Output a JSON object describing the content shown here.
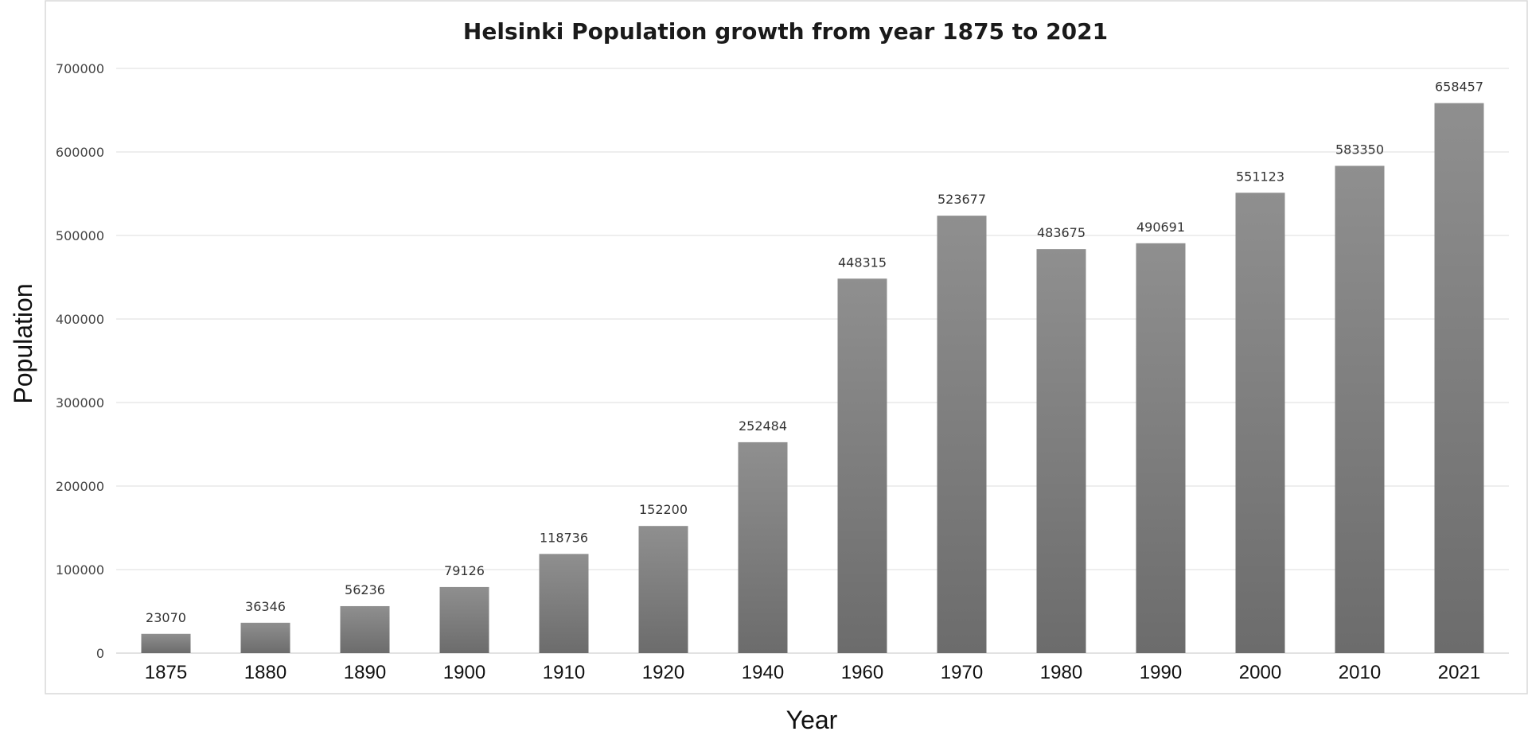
{
  "chart_data": {
    "type": "bar",
    "title": "Helsinki Population growth from year 1875 to 2021",
    "xlabel": "Year",
    "ylabel": "Population",
    "categories": [
      "1875",
      "1880",
      "1890",
      "1900",
      "1910",
      "1920",
      "1940",
      "1960",
      "1970",
      "1980",
      "1990",
      "2000",
      "2010",
      "2021"
    ],
    "values": [
      23070,
      36346,
      56236,
      79126,
      118736,
      152200,
      252484,
      448315,
      523677,
      483675,
      490691,
      551123,
      583350,
      658457
    ],
    "ylim": [
      0,
      700000
    ],
    "yticks": [
      "0",
      "100000",
      "200000",
      "300000",
      "400000",
      "500000",
      "600000",
      "700000"
    ],
    "grid": "horizontal",
    "legend": "none",
    "data_labels": true
  },
  "colors": {
    "bar_top": "#8f8f8f",
    "bar_bottom": "#6c6c6c",
    "grid": "#dcdcdc",
    "frame": "#d9d9d9"
  }
}
